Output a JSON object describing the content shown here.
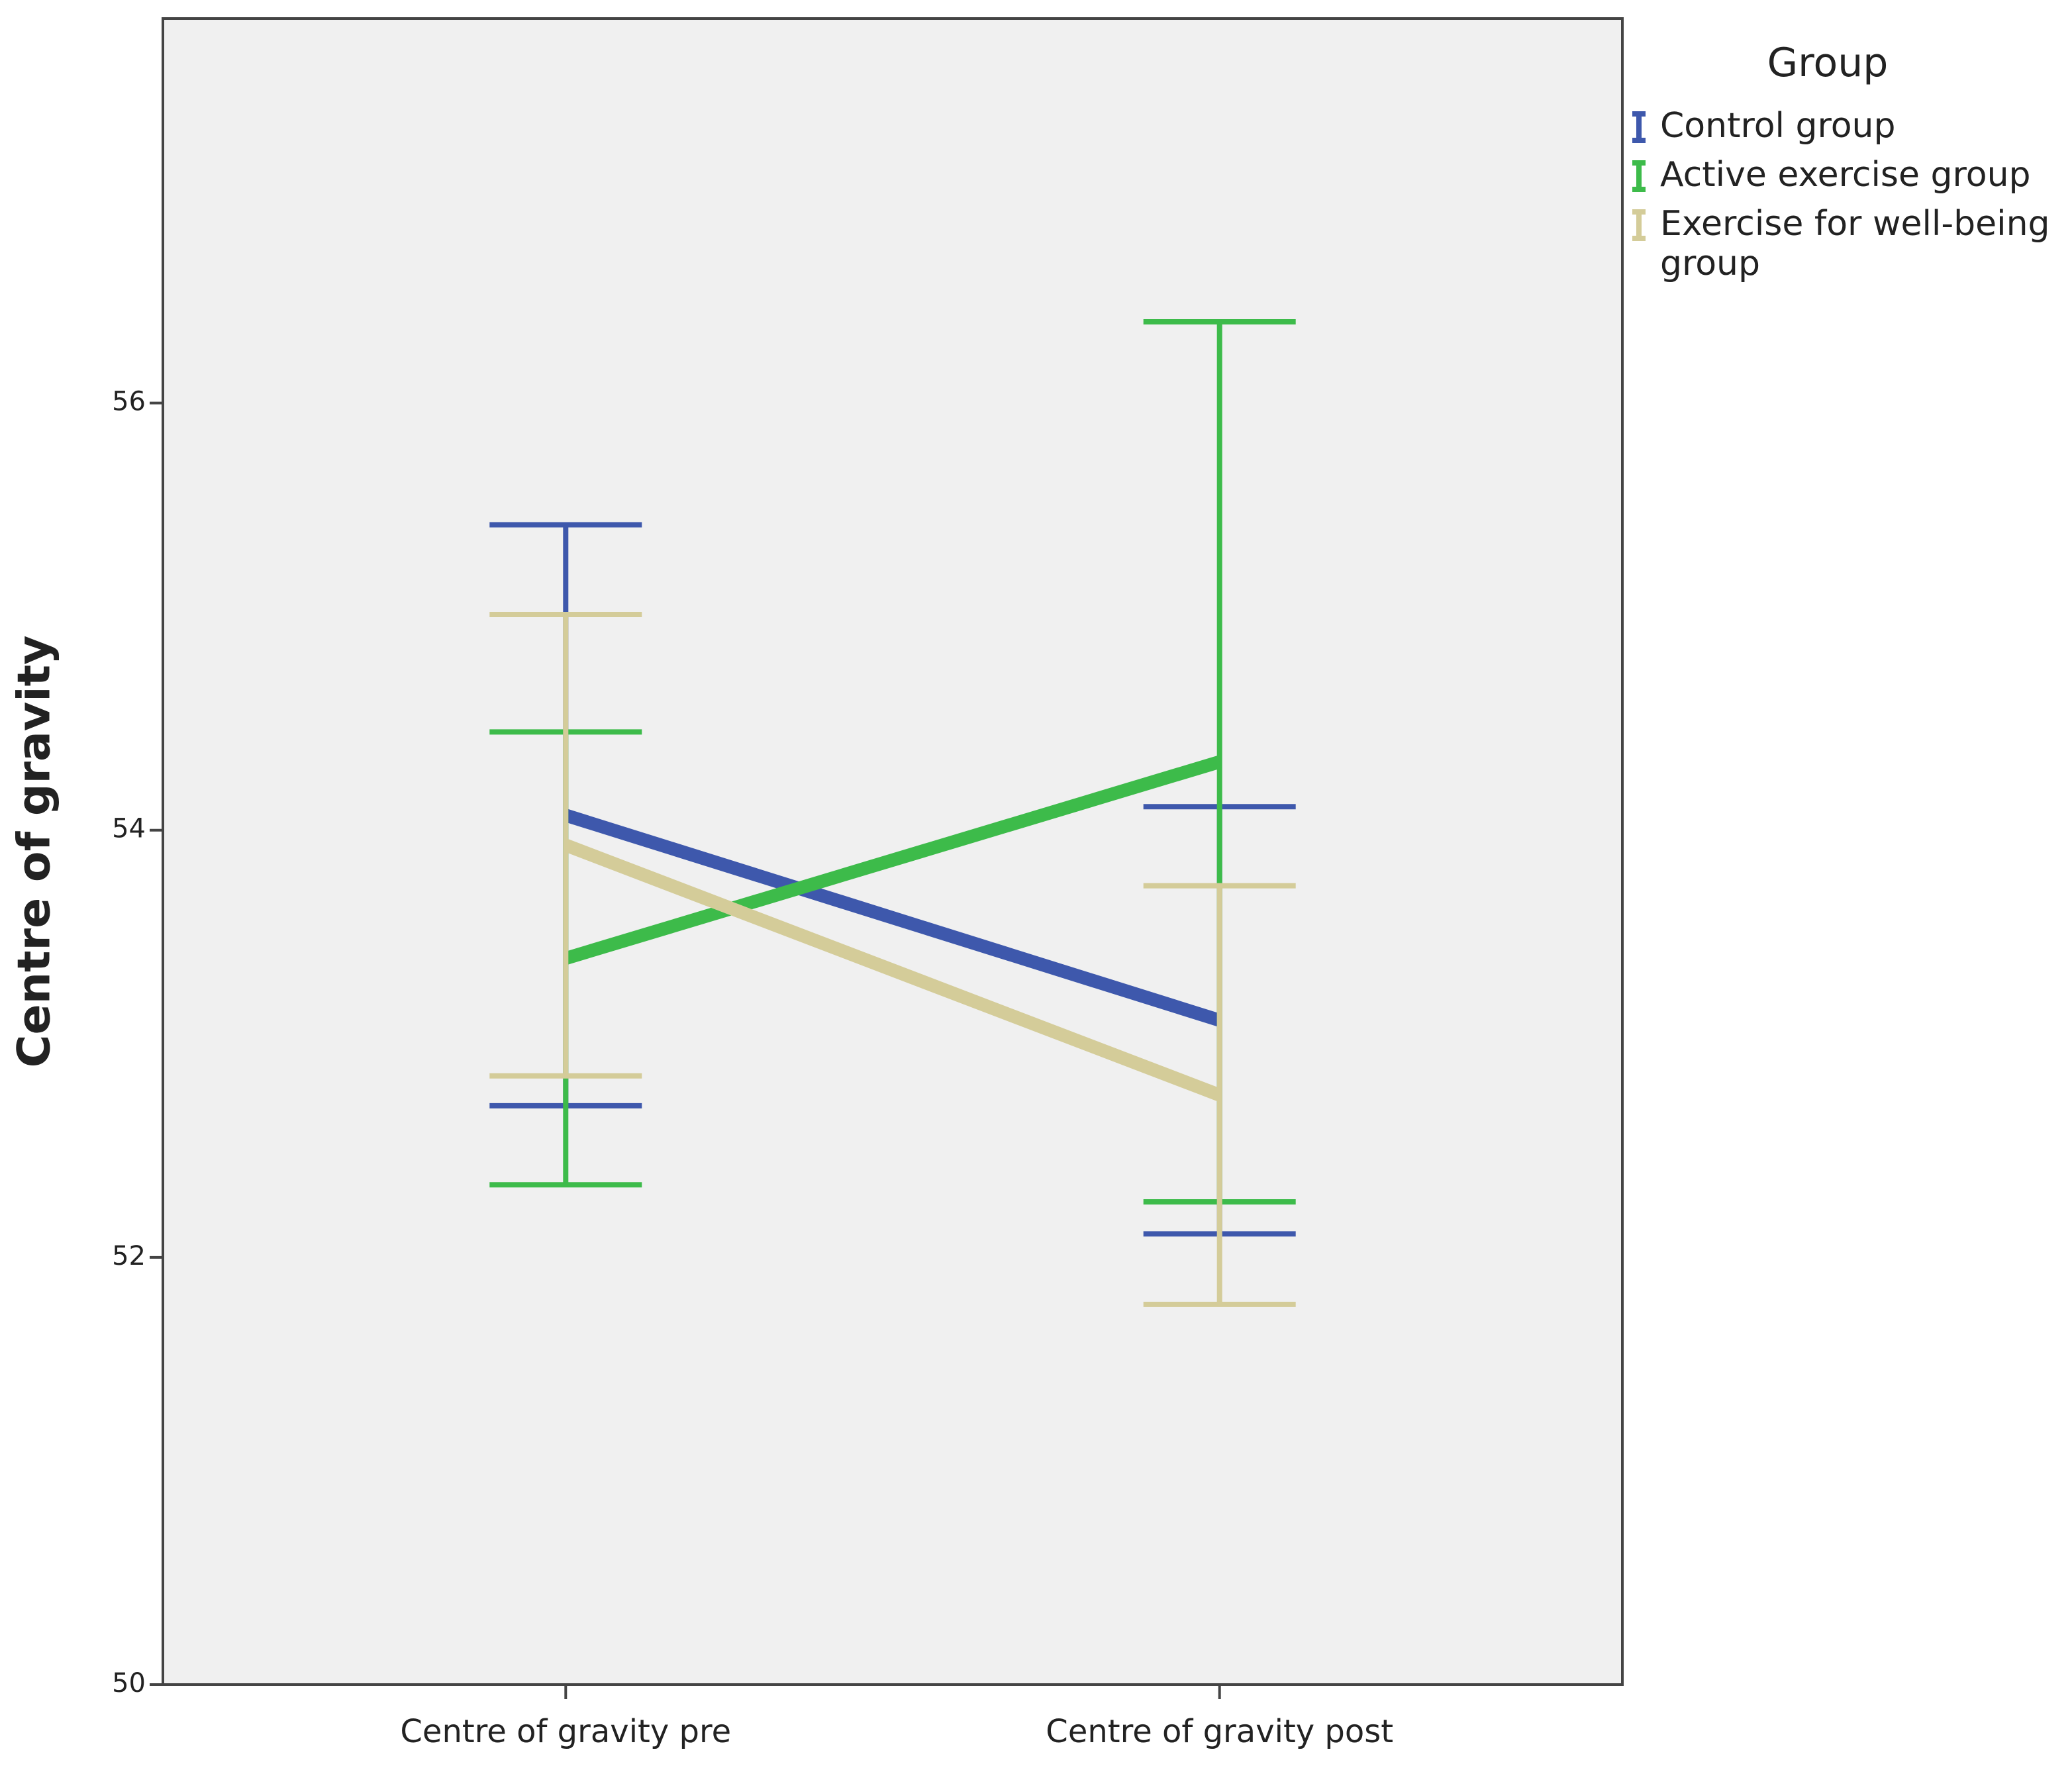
{
  "chart_data": {
    "type": "line",
    "y_label": "Centre of gravity",
    "categories": [
      "Centre of gravity pre",
      "Centre of gravity post"
    ],
    "legend_title": "Group",
    "legend_position": "outside right",
    "ylim": [
      50,
      57.8
    ],
    "yticks": [
      50,
      52,
      54,
      56
    ],
    "series": [
      {
        "name": "Control group",
        "color": "#3e58ac",
        "values": [
          54.07,
          53.11
        ],
        "errors": [
          1.36,
          1.0
        ]
      },
      {
        "name": "Active exercise group",
        "color": "#3dbb4a",
        "values": [
          53.4,
          54.32
        ],
        "errors": [
          1.06,
          2.06
        ]
      },
      {
        "name": "Exercise for well-being group",
        "color": "#d4cc99",
        "values": [
          53.93,
          52.76
        ],
        "errors": [
          1.08,
          0.98
        ]
      }
    ]
  }
}
